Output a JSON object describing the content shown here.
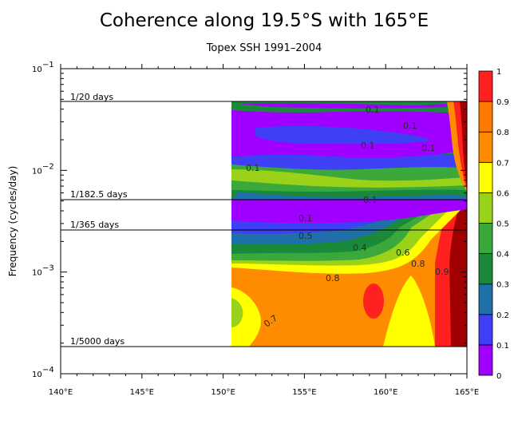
{
  "chart_data": {
    "type": "contour",
    "title": "Coherence along 19.5°S with 165°E",
    "subtitle": "Topex SSH 1991–2004",
    "ylabel": "Frequency (cycles/day)",
    "xlabel": "",
    "x_ticks": [
      "140°E",
      "145°E",
      "150°E",
      "155°E",
      "160°E",
      "165°E"
    ],
    "x_range": [
      140,
      165
    ],
    "y_scale": "log",
    "y_range": [
      0.0001,
      0.1
    ],
    "y_ticks": [
      {
        "base": "10",
        "exp": "−4"
      },
      {
        "base": "10",
        "exp": "−3"
      },
      {
        "base": "10",
        "exp": "−2"
      },
      {
        "base": "10",
        "exp": "−1"
      }
    ],
    "data_x_range": [
      150.3,
      165
    ],
    "reference_lines": [
      {
        "label": "1/20 days",
        "frequency": 0.05
      },
      {
        "label": "1/182.5 days",
        "frequency": 0.00548
      },
      {
        "label": "1/365 days",
        "frequency": 0.00274
      },
      {
        "label": "1/5000 days",
        "frequency": 0.0002
      }
    ],
    "contour_labels": [
      "0.1",
      "0.1",
      "0.1",
      "0.1",
      "0.1",
      "0.1",
      "0.1",
      "0.5",
      "0.4",
      "0.6",
      "0.8",
      "0.8",
      "0.9",
      "0.7"
    ],
    "colorbar": {
      "ticks": [
        "0",
        "0.1",
        "0.2",
        "0.3",
        "0.4",
        "0.5",
        "0.6",
        "0.7",
        "0.8",
        "0.9",
        "1"
      ],
      "colors": [
        "#a000ff",
        "#3f3ff5",
        "#1f6fa8",
        "#1a8a3a",
        "#3aa83a",
        "#9ad21a",
        "#ffff00",
        "#ff8c00",
        "#ff7a00",
        "#ff2020",
        "#a00000"
      ]
    }
  }
}
